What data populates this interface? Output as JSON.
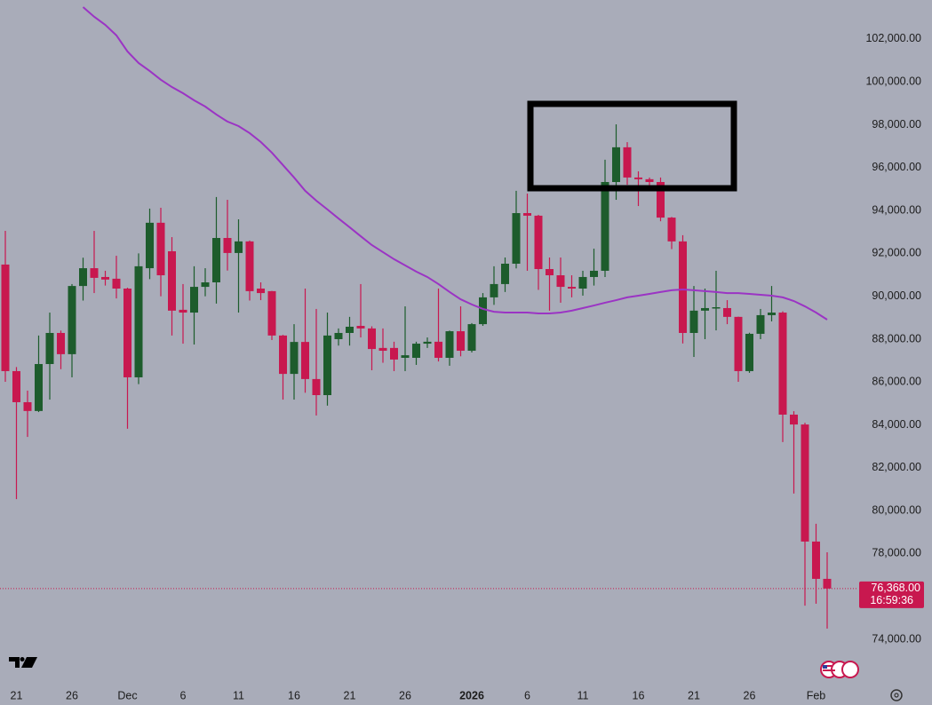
{
  "chart_data": {
    "type": "candlestick",
    "categories": [
      null,
      "21",
      null,
      null,
      null,
      null,
      "26",
      null,
      null,
      null,
      null,
      "Dec",
      null,
      null,
      null,
      null,
      "6",
      null,
      null,
      null,
      null,
      "11",
      null,
      null,
      null,
      null,
      "16",
      null,
      null,
      null,
      null,
      "21",
      null,
      null,
      null,
      null,
      "26",
      null,
      null,
      null,
      null,
      null,
      "2026",
      null,
      null,
      null,
      null,
      "6",
      null,
      null,
      null,
      null,
      "11",
      null,
      null,
      null,
      null,
      "16",
      null,
      null,
      null,
      null,
      "21",
      null,
      null,
      null,
      null,
      "26",
      null,
      null,
      null,
      null,
      null,
      "Feb",
      null
    ],
    "open": [
      91480,
      86510,
      85060,
      84650,
      86840,
      88290,
      87300,
      90480,
      91310,
      90900,
      90820,
      90360,
      86220,
      91310,
      93430,
      92100,
      89370,
      89240,
      90440,
      90650,
      92720,
      92020,
      92560,
      90360,
      90240,
      88170,
      86380,
      87870,
      86140,
      85390,
      88000,
      88290,
      88620,
      88500,
      87590,
      87590,
      87130,
      87130,
      87790,
      87880,
      87130,
      88370,
      87460,
      88700,
      89950,
      90570,
      91520,
      93880,
      93760,
      91270,
      90980,
      90440,
      90360,
      90900,
      91190,
      95330,
      96950,
      95540,
      95460,
      95330,
      93670,
      92560,
      88290,
      89330,
      89450,
      89450,
      89040,
      86510,
      88250,
      89120,
      89240,
      84480,
      84020,
      78560,
      76820
    ],
    "high": [
      93050,
      86700,
      85600,
      88170,
      89240,
      88400,
      90570,
      91800,
      93050,
      91190,
      91890,
      90400,
      92000,
      94090,
      94130,
      92760,
      90570,
      91400,
      91310,
      94630,
      94500,
      93590,
      92600,
      90650,
      90250,
      88200,
      88700,
      90360,
      89410,
      89240,
      88500,
      89040,
      90570,
      88600,
      88500,
      87880,
      89530,
      87880,
      88080,
      90360,
      88400,
      89530,
      88750,
      90150,
      91400,
      91810,
      94920,
      94790,
      93800,
      91810,
      91810,
      90980,
      91190,
      92220,
      96370,
      98020,
      97190,
      95830,
      95540,
      95540,
      93700,
      92850,
      90480,
      90360,
      91190,
      89820,
      89050,
      88300,
      89410,
      90480,
      89300,
      84640,
      84100,
      79390,
      78060
    ],
    "low": [
      86010,
      80540,
      83440,
      84600,
      85180,
      86600,
      86220,
      89800,
      90150,
      90500,
      89900,
      83820,
      85900,
      90800,
      90000,
      88170,
      87790,
      87750,
      90000,
      89660,
      91200,
      89240,
      89800,
      89820,
      87960,
      85180,
      85180,
      85500,
      84440,
      84900,
      87700,
      87700,
      88080,
      86550,
      86900,
      86510,
      86510,
      86800,
      87590,
      86960,
      86760,
      87200,
      87380,
      88620,
      89600,
      90200,
      91300,
      91190,
      90300,
      89330,
      89700,
      89950,
      90030,
      90500,
      90900,
      94500,
      95200,
      94210,
      94920,
      93500,
      92200,
      87800,
      87170,
      88000,
      88410,
      88700,
      86010,
      86430,
      88000,
      88830,
      83200,
      80800,
      75570,
      75660,
      74500
    ],
    "close": [
      86510,
      85060,
      84650,
      86840,
      88290,
      87300,
      90480,
      91310,
      90860,
      90780,
      90360,
      86220,
      91400,
      93430,
      90980,
      89330,
      89240,
      90440,
      90650,
      92720,
      92020,
      92560,
      90240,
      90150,
      88170,
      86380,
      87870,
      86140,
      85390,
      88170,
      88290,
      88580,
      88500,
      87540,
      87460,
      87050,
      87250,
      87790,
      87880,
      87130,
      88370,
      87460,
      88700,
      89950,
      90570,
      91520,
      93880,
      93760,
      91270,
      90980,
      90440,
      90360,
      90900,
      91190,
      95330,
      96950,
      95540,
      95460,
      95330,
      93670,
      92560,
      88290,
      89330,
      89450,
      89490,
      89040,
      86510,
      88250,
      89120,
      89240,
      84480,
      84020,
      78560,
      76820,
      76368
    ],
    "up_color": "#1d5c2c",
    "down_color": "#c8184f",
    "moving_average": {
      "color": "#9b34c4",
      "values": [
        null,
        null,
        null,
        null,
        null,
        null,
        null,
        103490,
        103040,
        102660,
        102170,
        101420,
        100880,
        100510,
        100100,
        99760,
        99470,
        99140,
        98850,
        98480,
        98150,
        97940,
        97610,
        97200,
        96700,
        96120,
        95540,
        94920,
        94460,
        94050,
        93630,
        93220,
        92800,
        92390,
        92060,
        91730,
        91440,
        91150,
        90900,
        90570,
        90200,
        89860,
        89620,
        89410,
        89280,
        89240,
        89240,
        89240,
        89200,
        89200,
        89240,
        89330,
        89450,
        89570,
        89700,
        89820,
        89950,
        90030,
        90110,
        90200,
        90280,
        90320,
        90280,
        90240,
        90200,
        90150,
        90150,
        90110,
        90070,
        90030,
        89950,
        89780,
        89530,
        89240,
        88910
      ]
    },
    "ylim": [
      71930,
      103820
    ],
    "yticks": [
      {
        "value": 74000,
        "label": "74,000.00"
      },
      {
        "value": 76000,
        "label": "76,000.00"
      },
      {
        "value": 78000,
        "label": "78,000.00"
      },
      {
        "value": 80000,
        "label": "80,000.00"
      },
      {
        "value": 82000,
        "label": "82,000.00"
      },
      {
        "value": 84000,
        "label": "84,000.00"
      },
      {
        "value": 86000,
        "label": "86,000.00"
      },
      {
        "value": 88000,
        "label": "88,000.00"
      },
      {
        "value": 90000,
        "label": "90,000.00"
      },
      {
        "value": 92000,
        "label": "92,000.00"
      },
      {
        "value": 94000,
        "label": "94,000.00"
      },
      {
        "value": 96000,
        "label": "96,000.00"
      },
      {
        "value": 98000,
        "label": "98,000.00"
      },
      {
        "value": 100000,
        "label": "100,000.00"
      },
      {
        "value": 102000,
        "label": "102,000.00"
      }
    ],
    "last_price": {
      "value": 76368,
      "label": "76,368.00"
    },
    "countdown": "16:59:36"
  }
}
